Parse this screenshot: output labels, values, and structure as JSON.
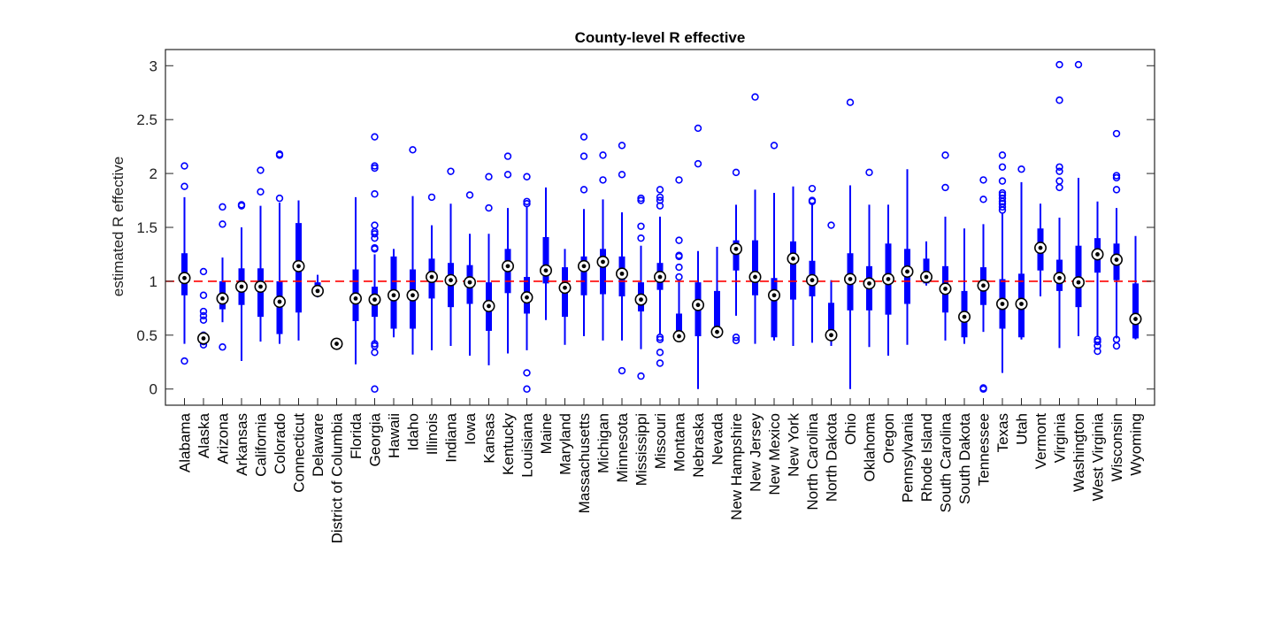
{
  "chart_data": {
    "type": "box",
    "title": "County-level R effective",
    "xlabel": "",
    "ylabel": "estimated R effective",
    "ylim": [
      -0.15,
      3.15
    ],
    "yticks": [
      0,
      0.5,
      1,
      1.5,
      2,
      2.5,
      3
    ],
    "ytick_labels": [
      "0",
      "0.5",
      "1",
      "1.5",
      "2",
      "2.5",
      "3"
    ],
    "reference_line": {
      "y": 1,
      "color": "#ff0000",
      "style": "dashed"
    },
    "box_color": "#0000ff",
    "outlier_color": "#0000ff",
    "grid": false,
    "categories": [
      "Alabama",
      "Alaska",
      "Arizona",
      "Arkansas",
      "California",
      "Colorado",
      "Connecticut",
      "Delaware",
      "District of Columbia",
      "Florida",
      "Georgia",
      "Hawaii",
      "Idaho",
      "Illinois",
      "Indiana",
      "Iowa",
      "Kansas",
      "Kentucky",
      "Louisiana",
      "Maine",
      "Maryland",
      "Massachusetts",
      "Michigan",
      "Minnesota",
      "Mississippi",
      "Missouri",
      "Montana",
      "Nebraska",
      "Nevada",
      "New Hampshire",
      "New Jersey",
      "New Mexico",
      "New York",
      "North Carolina",
      "North Dakota",
      "Ohio",
      "Oklahoma",
      "Oregon",
      "Pennsylvania",
      "Rhode Island",
      "South Carolina",
      "South Dakota",
      "Tennessee",
      "Texas",
      "Utah",
      "Vermont",
      "Virginia",
      "Washington",
      "West Virginia",
      "Wisconsin",
      "Wyoming"
    ],
    "boxes": [
      {
        "q1": 0.87,
        "median": 1.03,
        "q3": 1.26,
        "wlo": 0.42,
        "whi": 1.78,
        "outliers": [
          0.26,
          1.88,
          2.07
        ]
      },
      {
        "q1": 0.47,
        "median": 0.47,
        "q3": 0.47,
        "wlo": 0.47,
        "whi": 0.47,
        "outliers": [
          0.41,
          0.44,
          0.48,
          0.5,
          0.64,
          0.68,
          0.72,
          0.87,
          1.09
        ]
      },
      {
        "q1": 0.74,
        "median": 0.84,
        "q3": 1.0,
        "wlo": 0.62,
        "whi": 1.22,
        "outliers": [
          0.39,
          1.53,
          1.69
        ]
      },
      {
        "q1": 0.78,
        "median": 0.95,
        "q3": 1.12,
        "wlo": 0.26,
        "whi": 1.5,
        "outliers": [
          1.7,
          1.71
        ]
      },
      {
        "q1": 0.67,
        "median": 0.95,
        "q3": 1.12,
        "wlo": 0.44,
        "whi": 1.7,
        "outliers": [
          1.83,
          2.03
        ]
      },
      {
        "q1": 0.51,
        "median": 0.81,
        "q3": 1.0,
        "wlo": 0.42,
        "whi": 1.73,
        "outliers": [
          1.77,
          2.17,
          2.18
        ]
      },
      {
        "q1": 0.71,
        "median": 1.14,
        "q3": 1.54,
        "wlo": 0.45,
        "whi": 1.75,
        "outliers": []
      },
      {
        "q1": 0.88,
        "median": 0.91,
        "q3": 0.99,
        "wlo": 0.85,
        "whi": 1.06,
        "outliers": []
      },
      {
        "q1": 0.42,
        "median": 0.42,
        "q3": 0.42,
        "wlo": 0.42,
        "whi": 0.42,
        "outliers": []
      },
      {
        "q1": 0.63,
        "median": 0.84,
        "q3": 1.11,
        "wlo": 0.23,
        "whi": 1.78,
        "outliers": []
      },
      {
        "q1": 0.67,
        "median": 0.83,
        "q3": 0.95,
        "wlo": 0.43,
        "whi": 1.25,
        "outliers": [
          0.0,
          0.34,
          0.4,
          0.42,
          1.3,
          1.31,
          1.4,
          1.44,
          1.46,
          1.52,
          1.81,
          2.05,
          2.07,
          2.34
        ]
      },
      {
        "q1": 0.56,
        "median": 0.87,
        "q3": 1.23,
        "wlo": 0.48,
        "whi": 1.3,
        "outliers": []
      },
      {
        "q1": 0.56,
        "median": 0.87,
        "q3": 1.11,
        "wlo": 0.32,
        "whi": 1.79,
        "outliers": [
          2.22
        ]
      },
      {
        "q1": 0.84,
        "median": 1.04,
        "q3": 1.21,
        "wlo": 0.36,
        "whi": 1.52,
        "outliers": [
          1.78
        ]
      },
      {
        "q1": 0.76,
        "median": 1.01,
        "q3": 1.17,
        "wlo": 0.4,
        "whi": 1.72,
        "outliers": [
          2.02
        ]
      },
      {
        "q1": 0.79,
        "median": 0.99,
        "q3": 1.15,
        "wlo": 0.31,
        "whi": 1.44,
        "outliers": [
          1.8
        ]
      },
      {
        "q1": 0.54,
        "median": 0.77,
        "q3": 0.99,
        "wlo": 0.22,
        "whi": 1.44,
        "outliers": [
          1.68,
          1.97
        ]
      },
      {
        "q1": 0.89,
        "median": 1.14,
        "q3": 1.3,
        "wlo": 0.33,
        "whi": 1.68,
        "outliers": [
          1.99,
          2.16
        ]
      },
      {
        "q1": 0.7,
        "median": 0.85,
        "q3": 1.04,
        "wlo": 0.36,
        "whi": 1.7,
        "outliers": [
          0.0,
          0.15,
          1.72,
          1.74,
          1.97
        ]
      },
      {
        "q1": 0.98,
        "median": 1.1,
        "q3": 1.41,
        "wlo": 0.64,
        "whi": 1.87,
        "outliers": []
      },
      {
        "q1": 0.67,
        "median": 0.94,
        "q3": 1.13,
        "wlo": 0.41,
        "whi": 1.3,
        "outliers": []
      },
      {
        "q1": 0.87,
        "median": 1.14,
        "q3": 1.23,
        "wlo": 0.49,
        "whi": 1.67,
        "outliers": [
          1.85,
          2.16,
          2.34
        ]
      },
      {
        "q1": 0.88,
        "median": 1.18,
        "q3": 1.3,
        "wlo": 0.45,
        "whi": 1.76,
        "outliers": [
          1.94,
          2.17
        ]
      },
      {
        "q1": 0.86,
        "median": 1.07,
        "q3": 1.23,
        "wlo": 0.45,
        "whi": 1.64,
        "outliers": [
          0.17,
          1.99,
          2.26
        ]
      },
      {
        "q1": 0.72,
        "median": 0.83,
        "q3": 0.99,
        "wlo": 0.37,
        "whi": 1.33,
        "outliers": [
          0.12,
          1.4,
          1.51,
          1.75,
          1.77
        ]
      },
      {
        "q1": 0.92,
        "median": 1.04,
        "q3": 1.17,
        "wlo": 0.51,
        "whi": 1.6,
        "outliers": [
          0.24,
          0.34,
          0.46,
          0.48,
          1.7,
          1.75,
          1.78,
          1.85
        ]
      },
      {
        "q1": 0.48,
        "median": 0.49,
        "q3": 0.7,
        "wlo": 0.45,
        "whi": 1.0,
        "outliers": [
          1.04,
          1.13,
          1.23,
          1.24,
          1.38,
          1.94
        ]
      },
      {
        "q1": 0.49,
        "median": 0.78,
        "q3": 0.99,
        "wlo": 0.0,
        "whi": 1.28,
        "outliers": [
          2.09,
          2.42
        ]
      },
      {
        "q1": 0.5,
        "median": 0.53,
        "q3": 0.91,
        "wlo": 0.47,
        "whi": 1.32,
        "outliers": []
      },
      {
        "q1": 1.1,
        "median": 1.3,
        "q3": 1.38,
        "wlo": 0.68,
        "whi": 1.71,
        "outliers": [
          0.45,
          0.48,
          2.01
        ]
      },
      {
        "q1": 0.87,
        "median": 1.04,
        "q3": 1.38,
        "wlo": 0.42,
        "whi": 1.85,
        "outliers": [
          2.71
        ]
      },
      {
        "q1": 0.48,
        "median": 0.87,
        "q3": 1.03,
        "wlo": 0.45,
        "whi": 1.82,
        "outliers": [
          2.26
        ]
      },
      {
        "q1": 0.83,
        "median": 1.21,
        "q3": 1.37,
        "wlo": 0.4,
        "whi": 1.88,
        "outliers": []
      },
      {
        "q1": 0.86,
        "median": 1.01,
        "q3": 1.19,
        "wlo": 0.43,
        "whi": 1.72,
        "outliers": [
          1.74,
          1.75,
          1.86
        ]
      },
      {
        "q1": 0.48,
        "median": 0.5,
        "q3": 0.8,
        "wlo": 0.4,
        "whi": 1.01,
        "outliers": [
          1.52
        ]
      },
      {
        "q1": 0.73,
        "median": 1.02,
        "q3": 1.26,
        "wlo": 0.0,
        "whi": 1.89,
        "outliers": [
          2.66
        ]
      },
      {
        "q1": 0.73,
        "median": 0.98,
        "q3": 1.14,
        "wlo": 0.39,
        "whi": 1.71,
        "outliers": [
          2.01
        ]
      },
      {
        "q1": 0.69,
        "median": 1.02,
        "q3": 1.35,
        "wlo": 0.31,
        "whi": 1.71,
        "outliers": []
      },
      {
        "q1": 0.79,
        "median": 1.09,
        "q3": 1.3,
        "wlo": 0.41,
        "whi": 2.04,
        "outliers": []
      },
      {
        "q1": 0.98,
        "median": 1.04,
        "q3": 1.21,
        "wlo": 0.96,
        "whi": 1.37,
        "outliers": []
      },
      {
        "q1": 0.71,
        "median": 0.93,
        "q3": 1.14,
        "wlo": 0.45,
        "whi": 1.6,
        "outliers": [
          1.87,
          2.17
        ]
      },
      {
        "q1": 0.48,
        "median": 0.67,
        "q3": 0.91,
        "wlo": 0.42,
        "whi": 1.49,
        "outliers": []
      },
      {
        "q1": 0.78,
        "median": 0.96,
        "q3": 1.13,
        "wlo": 0.53,
        "whi": 1.53,
        "outliers": [
          0.0,
          0.01,
          1.76,
          1.94
        ]
      },
      {
        "q1": 0.56,
        "median": 0.79,
        "q3": 1.02,
        "wlo": 0.15,
        "whi": 1.63,
        "outliers": [
          1.66,
          1.69,
          1.72,
          1.74,
          1.77,
          1.8,
          1.82,
          1.93,
          2.06,
          2.17
        ]
      },
      {
        "q1": 0.48,
        "median": 0.79,
        "q3": 1.07,
        "wlo": 0.46,
        "whi": 1.92,
        "outliers": [
          2.04
        ]
      },
      {
        "q1": 1.1,
        "median": 1.31,
        "q3": 1.49,
        "wlo": 0.86,
        "whi": 1.72,
        "outliers": []
      },
      {
        "q1": 0.91,
        "median": 1.03,
        "q3": 1.2,
        "wlo": 0.38,
        "whi": 1.59,
        "outliers": [
          1.87,
          1.93,
          2.02,
          2.06,
          2.68,
          3.01
        ]
      },
      {
        "q1": 0.76,
        "median": 0.99,
        "q3": 1.33,
        "wlo": 0.49,
        "whi": 1.96,
        "outliers": [
          3.01
        ]
      },
      {
        "q1": 1.08,
        "median": 1.25,
        "q3": 1.4,
        "wlo": 0.48,
        "whi": 1.74,
        "outliers": [
          0.35,
          0.4,
          0.44,
          0.46
        ]
      },
      {
        "q1": 1.01,
        "median": 1.2,
        "q3": 1.35,
        "wlo": 0.47,
        "whi": 1.68,
        "outliers": [
          0.4,
          0.46,
          1.85,
          1.96,
          1.98,
          2.37
        ]
      },
      {
        "q1": 0.47,
        "median": 0.65,
        "q3": 0.98,
        "wlo": 0.46,
        "whi": 1.42,
        "outliers": []
      }
    ]
  }
}
